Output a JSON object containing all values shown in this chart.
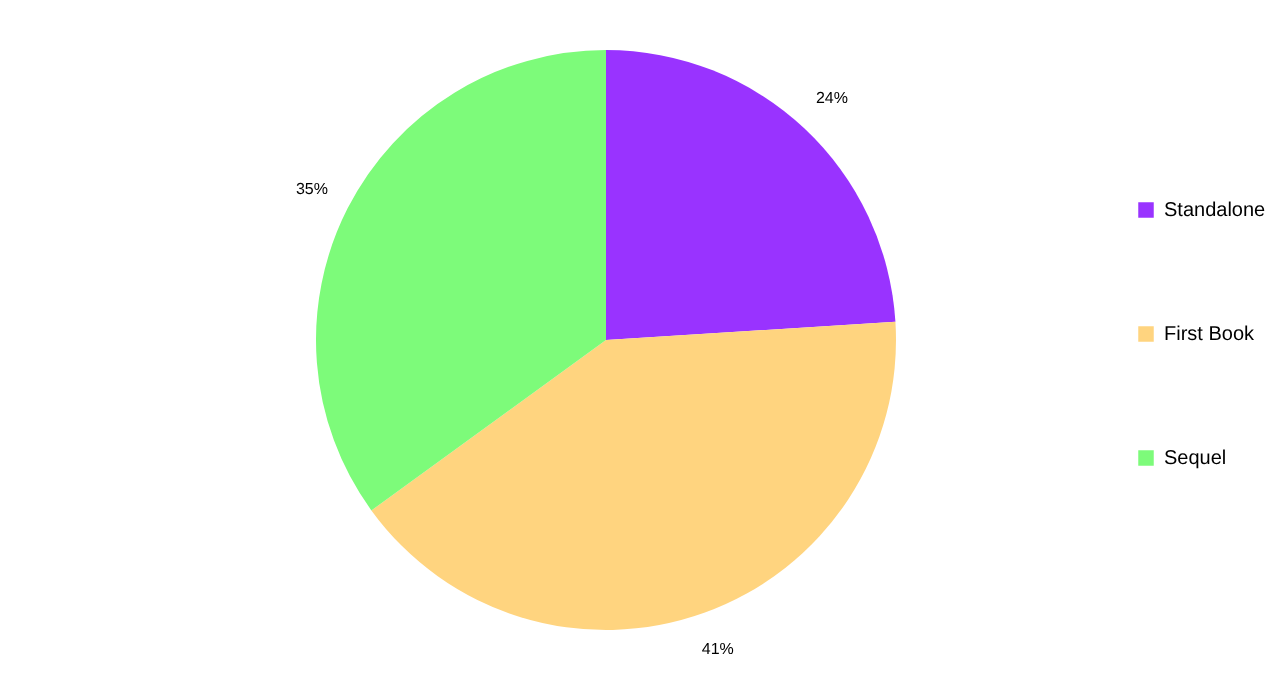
{
  "chart_data": {
    "type": "pie",
    "categories": [
      "Standalone",
      "First Book",
      "Sequel"
    ],
    "values": [
      24,
      41,
      35
    ],
    "colors": [
      "#9933ff",
      "#ffd47f",
      "#7dfb7a"
    ],
    "value_labels": [
      "24%",
      "41%",
      "35%"
    ],
    "legend": "right"
  }
}
